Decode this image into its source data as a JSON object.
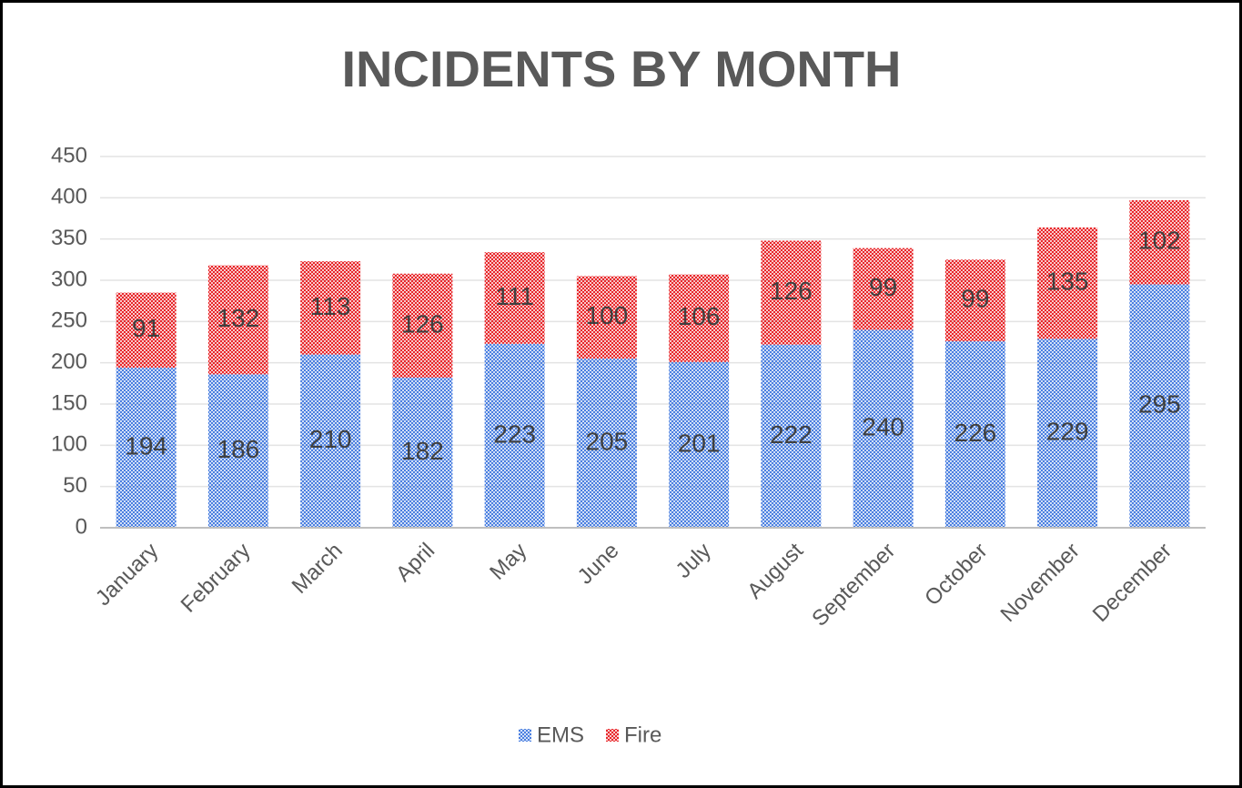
{
  "chart_data": {
    "type": "bar",
    "stacked": true,
    "title": "INCIDENTS BY MONTH",
    "categories": [
      "January",
      "February",
      "March",
      "April",
      "May",
      "June",
      "July",
      "August",
      "September",
      "October",
      "November",
      "December"
    ],
    "series": [
      {
        "name": "EMS",
        "color": "#4a7fe0",
        "values": [
          194,
          186,
          210,
          182,
          223,
          205,
          201,
          222,
          240,
          226,
          229,
          295
        ]
      },
      {
        "name": "Fire",
        "color": "#e8262a",
        "values": [
          91,
          132,
          113,
          126,
          111,
          100,
          106,
          126,
          99,
          99,
          135,
          102
        ]
      }
    ],
    "ylim": [
      0,
      450
    ],
    "yticks": [
      0,
      50,
      100,
      150,
      200,
      250,
      300,
      350,
      400,
      450
    ],
    "grid": true,
    "legend": "bottom"
  }
}
